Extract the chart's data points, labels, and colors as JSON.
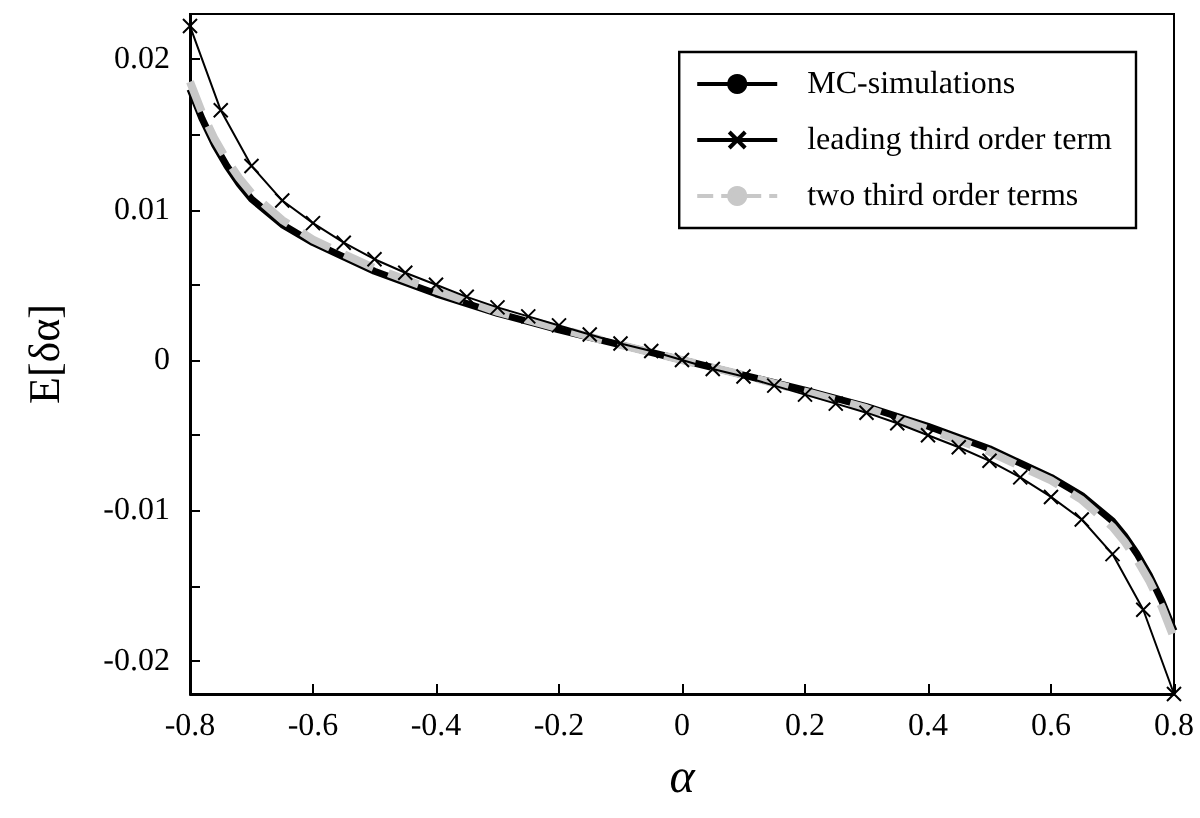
{
  "chart_data": {
    "type": "line",
    "xlabel": "α",
    "ylabel": "E[δα]",
    "xlim": [
      -0.8,
      0.8
    ],
    "ylim": [
      -0.0222,
      0.023
    ],
    "xticks": [
      -0.8,
      -0.6,
      -0.4,
      -0.2,
      0,
      0.2,
      0.4,
      0.6,
      0.8
    ],
    "yticks": [
      -0.02,
      {
        "value": -0.015,
        "label": null
      },
      -0.01,
      {
        "value": -0.005,
        "label": null
      },
      0,
      {
        "value": 0.005,
        "label": null
      },
      0.01,
      {
        "value": 0.015,
        "label": null
      },
      0.02
    ],
    "grid": false,
    "legend": "top right",
    "series": [
      {
        "name": "MC-simulations",
        "color": "#000000",
        "marker": "none",
        "line_style": "solid",
        "x": [
          -0.8,
          -0.78,
          -0.76,
          -0.74,
          -0.72,
          -0.7,
          -0.65,
          -0.6,
          -0.5,
          -0.4,
          -0.3,
          -0.2,
          -0.1,
          0,
          0.1,
          0.2,
          0.3,
          0.4,
          0.5,
          0.6,
          0.65,
          0.7,
          0.72,
          0.74,
          0.76,
          0.78,
          0.8
        ],
        "values": [
          0.018,
          0.016,
          0.0143,
          0.0129,
          0.0117,
          0.0107,
          0.009,
          0.0078,
          0.0059,
          0.0044,
          0.0031,
          0.002,
          0.001,
          0,
          -0.001,
          -0.002,
          -0.0031,
          -0.0044,
          -0.0059,
          -0.0078,
          -0.009,
          -0.0107,
          -0.0117,
          -0.0129,
          -0.0143,
          -0.016,
          -0.018
        ]
      },
      {
        "name": "leading third order term",
        "color": "#000000",
        "marker": "cross",
        "line_style": "solid",
        "x": [
          -0.8,
          -0.75,
          -0.7,
          -0.65,
          -0.6,
          -0.55,
          -0.5,
          -0.45,
          -0.4,
          -0.35,
          -0.3,
          -0.25,
          -0.2,
          -0.15,
          -0.1,
          -0.05,
          0,
          0.05,
          0.1,
          0.15,
          0.2,
          0.25,
          0.3,
          0.35,
          0.4,
          0.45,
          0.5,
          0.55,
          0.6,
          0.65,
          0.7,
          0.75,
          0.8
        ],
        "values": [
          0.0222,
          0.0166,
          0.0129,
          0.0106,
          0.0091,
          0.0078,
          0.0067,
          0.0058,
          0.005,
          0.0042,
          0.0035,
          0.0029,
          0.0023,
          0.0017,
          0.0011,
          0.0006,
          0,
          -0.0006,
          -0.0011,
          -0.0017,
          -0.0023,
          -0.0029,
          -0.0035,
          -0.0042,
          -0.005,
          -0.0058,
          -0.0067,
          -0.0078,
          -0.0091,
          -0.0106,
          -0.0129,
          -0.0166,
          -0.0222
        ]
      },
      {
        "name": "two third order terms",
        "color": "#c8c8c8",
        "marker": "none",
        "line_style": "dashed",
        "x": [
          -0.8,
          -0.78,
          -0.76,
          -0.74,
          -0.72,
          -0.7,
          -0.65,
          -0.6,
          -0.5,
          -0.4,
          -0.3,
          -0.2,
          -0.1,
          0,
          0.1,
          0.2,
          0.3,
          0.4,
          0.5,
          0.6,
          0.65,
          0.7,
          0.72,
          0.74,
          0.76,
          0.78,
          0.8
        ],
        "values": [
          0.0185,
          0.0164,
          0.0147,
          0.0133,
          0.0121,
          0.0111,
          0.0093,
          0.008,
          0.0061,
          0.0046,
          0.0032,
          0.0021,
          0.001,
          0,
          -0.001,
          -0.0021,
          -0.0032,
          -0.0046,
          -0.0061,
          -0.008,
          -0.0093,
          -0.0111,
          -0.0121,
          -0.0133,
          -0.0147,
          -0.0164,
          -0.0185
        ]
      }
    ]
  }
}
